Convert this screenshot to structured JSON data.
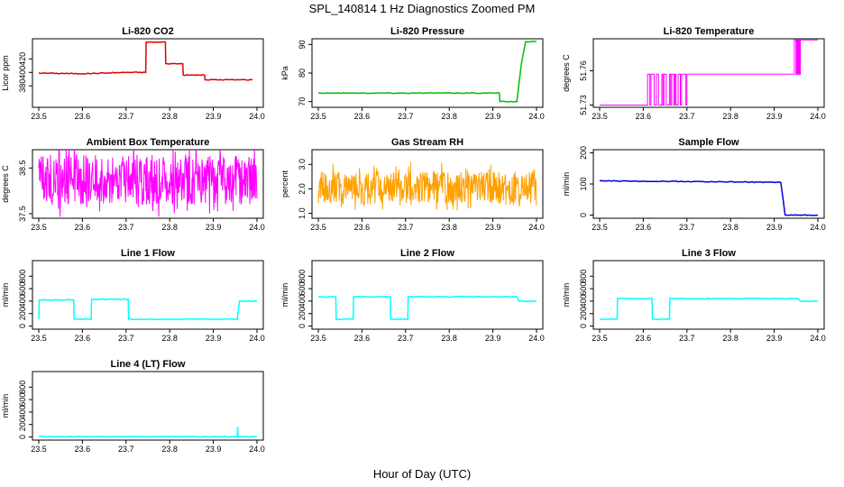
{
  "figure": {
    "title": "SPL_140814  1 Hz Diagnostics Zoomed PM",
    "xlabel": "Hour of Day (UTC)"
  },
  "chart_data": [
    {
      "type": "line",
      "title": "Li-820 CO2",
      "ylabel": "Licor ppm",
      "color": "#e00000",
      "xlim": [
        23.5,
        24.0
      ],
      "ylim": [
        348,
        450
      ],
      "yticks": [
        "380",
        "400",
        "420"
      ],
      "ytick_values": [
        380,
        400,
        420
      ],
      "xticks": [
        "23.5",
        "23.6",
        "23.7",
        "23.8",
        "23.9",
        "24.0"
      ],
      "x": [
        23.5,
        23.6,
        23.65,
        23.7,
        23.745,
        23.746,
        23.79,
        23.791,
        23.83,
        23.831,
        23.88,
        23.881,
        23.96,
        23.962,
        23.99
      ],
      "y": [
        399,
        398,
        399,
        400,
        400,
        445,
        445,
        413,
        413,
        396,
        396,
        389,
        389,
        389,
        389
      ]
    },
    {
      "type": "line",
      "title": "Li-820 Pressure",
      "ylabel": "kPa",
      "color": "#00c000",
      "xlim": [
        23.5,
        24.0
      ],
      "ylim": [
        68,
        92
      ],
      "yticks": [
        "70",
        "80",
        "90"
      ],
      "ytick_values": [
        70,
        80,
        90
      ],
      "xticks": [
        "23.5",
        "23.6",
        "23.7",
        "23.8",
        "23.9",
        "24.0"
      ],
      "x": [
        23.5,
        23.7,
        23.915,
        23.916,
        23.955,
        23.965,
        23.975,
        24.0
      ],
      "y": [
        73,
        73,
        73,
        70,
        70,
        83,
        91,
        91
      ]
    },
    {
      "type": "line",
      "title": "Li-820 Temperature",
      "ylabel": "degrees C",
      "color": "#ff00ff",
      "xlim": [
        23.5,
        24.0
      ],
      "ylim": [
        51.728,
        51.788
      ],
      "yticks": [
        "51.73",
        "51.76"
      ],
      "ytick_values": [
        51.73,
        51.76
      ],
      "yticks_extra": [
        "51.76"
      ],
      "xticks": [
        "23.5",
        "23.6",
        "23.7",
        "23.8",
        "23.9",
        "24.0"
      ],
      "x": [
        23.5,
        23.61,
        23.611,
        23.7,
        23.701,
        23.94,
        23.941,
        24.0
      ],
      "y": [
        51.73,
        51.73,
        51.757,
        51.757,
        51.757,
        51.757,
        51.787,
        51.787
      ]
    },
    {
      "type": "line",
      "title": "Ambient Box Temperature",
      "ylabel": "degrees C",
      "color": "#ff00ff",
      "xlim": [
        23.5,
        24.0
      ],
      "ylim": [
        37.4,
        38.9
      ],
      "yticks": [
        "37.5",
        "38.5"
      ],
      "ytick_values": [
        37.5,
        38.5
      ],
      "xticks": [
        "23.5",
        "23.6",
        "23.7",
        "23.8",
        "23.9",
        "24.0"
      ],
      "band_low": 37.7,
      "band_high": 38.8
    },
    {
      "type": "line",
      "title": "Gas Stream RH",
      "ylabel": "percent",
      "color": "#ffa000",
      "xlim": [
        23.5,
        24.0
      ],
      "ylim": [
        0.8,
        3.6
      ],
      "yticks": [
        "1.0",
        "2.0",
        "3.0"
      ],
      "ytick_values": [
        1.0,
        2.0,
        3.0
      ],
      "xticks": [
        "23.5",
        "23.6",
        "23.7",
        "23.8",
        "23.9",
        "24.0"
      ],
      "band_low": 1.4,
      "band_high": 2.7
    },
    {
      "type": "line",
      "title": "Sample Flow",
      "ylabel": "ml/min",
      "color": "#0000e0",
      "xlim": [
        23.5,
        24.0
      ],
      "ylim": [
        -10,
        210
      ],
      "yticks": [
        "0",
        "100",
        "200"
      ],
      "ytick_values": [
        0,
        100,
        200
      ],
      "xticks": [
        "23.5",
        "23.6",
        "23.7",
        "23.8",
        "23.9",
        "24.0"
      ],
      "x": [
        23.5,
        23.7,
        23.915,
        23.925,
        23.93,
        24.0
      ],
      "y": [
        110,
        108,
        105,
        0,
        0,
        0
      ]
    },
    {
      "type": "line",
      "title": "Line 1 Flow",
      "ylabel": "ml/min",
      "color": "#00ffff",
      "xlim": [
        23.5,
        24.0
      ],
      "ylim": [
        -50,
        1050
      ],
      "yticks": [
        "0",
        "200",
        "400",
        "600",
        "800"
      ],
      "ytick_values": [
        0,
        200,
        400,
        600,
        800
      ],
      "xticks": [
        "23.5",
        "23.6",
        "23.7",
        "23.8",
        "23.9",
        "24.0"
      ],
      "x": [
        23.5,
        23.501,
        23.58,
        23.581,
        23.62,
        23.621,
        23.705,
        23.706,
        23.955,
        23.96,
        24.0
      ],
      "y": [
        110,
        420,
        420,
        110,
        110,
        430,
        430,
        110,
        110,
        400,
        400
      ]
    },
    {
      "type": "line",
      "title": "Line 2 Flow",
      "ylabel": "ml/min",
      "color": "#00ffff",
      "xlim": [
        23.5,
        24.0
      ],
      "ylim": [
        -50,
        1050
      ],
      "yticks": [
        "0",
        "200",
        "400",
        "600",
        "800"
      ],
      "ytick_values": [
        0,
        200,
        400,
        600,
        800
      ],
      "xticks": [
        "23.5",
        "23.6",
        "23.7",
        "23.8",
        "23.9",
        "24.0"
      ],
      "x": [
        23.5,
        23.54,
        23.541,
        23.58,
        23.581,
        23.665,
        23.666,
        23.705,
        23.706,
        23.955,
        23.96,
        24.0
      ],
      "y": [
        470,
        470,
        110,
        110,
        470,
        470,
        110,
        110,
        470,
        470,
        400,
        400
      ]
    },
    {
      "type": "line",
      "title": "Line 3 Flow",
      "ylabel": "ml/min",
      "color": "#00ffff",
      "xlim": [
        23.5,
        24.0
      ],
      "ylim": [
        -50,
        1050
      ],
      "yticks": [
        "0",
        "200",
        "400",
        "600",
        "800"
      ],
      "ytick_values": [
        0,
        200,
        400,
        600,
        800
      ],
      "xticks": [
        "23.5",
        "23.6",
        "23.7",
        "23.8",
        "23.9",
        "24.0"
      ],
      "x": [
        23.5,
        23.501,
        23.54,
        23.541,
        23.62,
        23.621,
        23.66,
        23.661,
        23.7,
        23.8,
        23.955,
        23.96,
        24.0
      ],
      "y": [
        110,
        110,
        110,
        440,
        440,
        110,
        110,
        440,
        440,
        440,
        440,
        400,
        400
      ]
    },
    {
      "type": "line",
      "title": "Line 4 (LT) Flow",
      "ylabel": "ml/min",
      "color": "#00ffff",
      "xlim": [
        23.5,
        24.0
      ],
      "ylim": [
        -50,
        1050
      ],
      "yticks": [
        "0",
        "200",
        "400",
        "600",
        "800"
      ],
      "ytick_values": [
        0,
        200,
        400,
        600,
        800
      ],
      "xticks": [
        "23.5",
        "23.6",
        "23.7",
        "23.8",
        "23.9",
        "24.0"
      ],
      "x": [
        23.5,
        23.955,
        23.9555,
        23.956,
        23.9565,
        24.0
      ],
      "y": [
        5,
        5,
        150,
        150,
        5,
        5
      ]
    }
  ]
}
